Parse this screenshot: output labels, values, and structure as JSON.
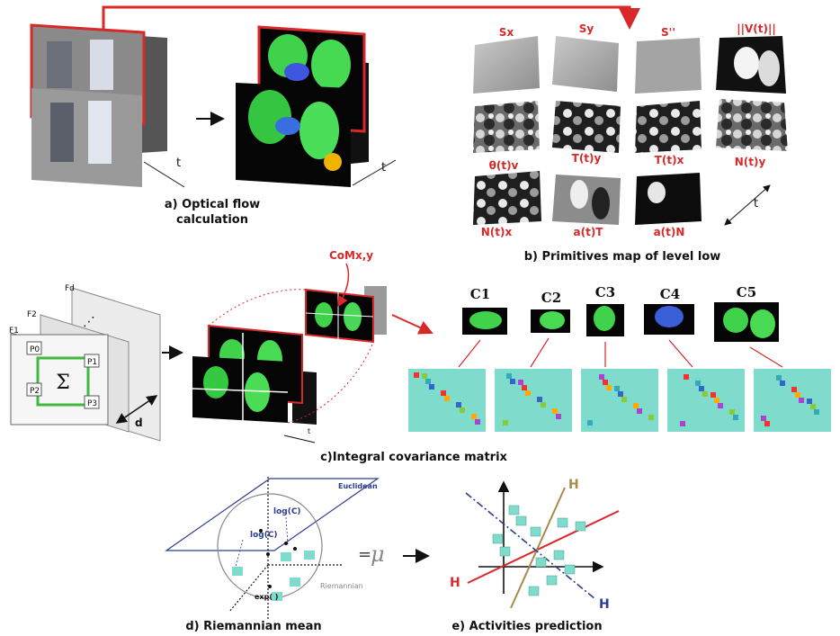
{
  "panels": {
    "a": {
      "caption_line1": "a) Optical flow",
      "caption_line2": "calculation",
      "time_label": "t"
    },
    "b": {
      "caption": "b) Primitives map of level low",
      "time_label": "t",
      "primitives": [
        {
          "label": "Sx"
        },
        {
          "label": "Sy"
        },
        {
          "label": "S''"
        },
        {
          "label": "||V(t)||"
        },
        {
          "label": "θ(t)v"
        },
        {
          "label": "T(t)y"
        },
        {
          "label": "T(t)x"
        },
        {
          "label": "N(t)y"
        },
        {
          "label": "N(t)x"
        },
        {
          "label": "a(t)T"
        },
        {
          "label": "a(t)N"
        }
      ]
    },
    "c": {
      "caption": "c)Integral covariance matrix",
      "integral": {
        "frames": [
          "F1",
          "F2",
          "Fd"
        ],
        "points": [
          "P0",
          "P1",
          "P2",
          "P3"
        ],
        "sigma": "Σ",
        "depth": "d"
      },
      "com_label": "CoMx,y",
      "time_label": "t",
      "components": [
        "C1",
        "C2",
        "C3",
        "C4",
        "C5"
      ]
    },
    "d": {
      "caption": "d) Riemannian mean",
      "euclidean": "Euclidean",
      "riemannian": "Riemannian",
      "log_c_1": "log(C)",
      "log_c_2": "log(C)",
      "exp": "exp(  )",
      "equals": "=",
      "mu": "μ"
    },
    "e": {
      "caption": "e) Activities prediction",
      "h_top": "H",
      "h_left": "H",
      "h_right": "H"
    }
  },
  "colors": {
    "red": "#d8282a",
    "navy": "#2b3c8f",
    "tan": "#a88a4a",
    "teal": "#7fdccc",
    "green": "#3fd24a"
  }
}
